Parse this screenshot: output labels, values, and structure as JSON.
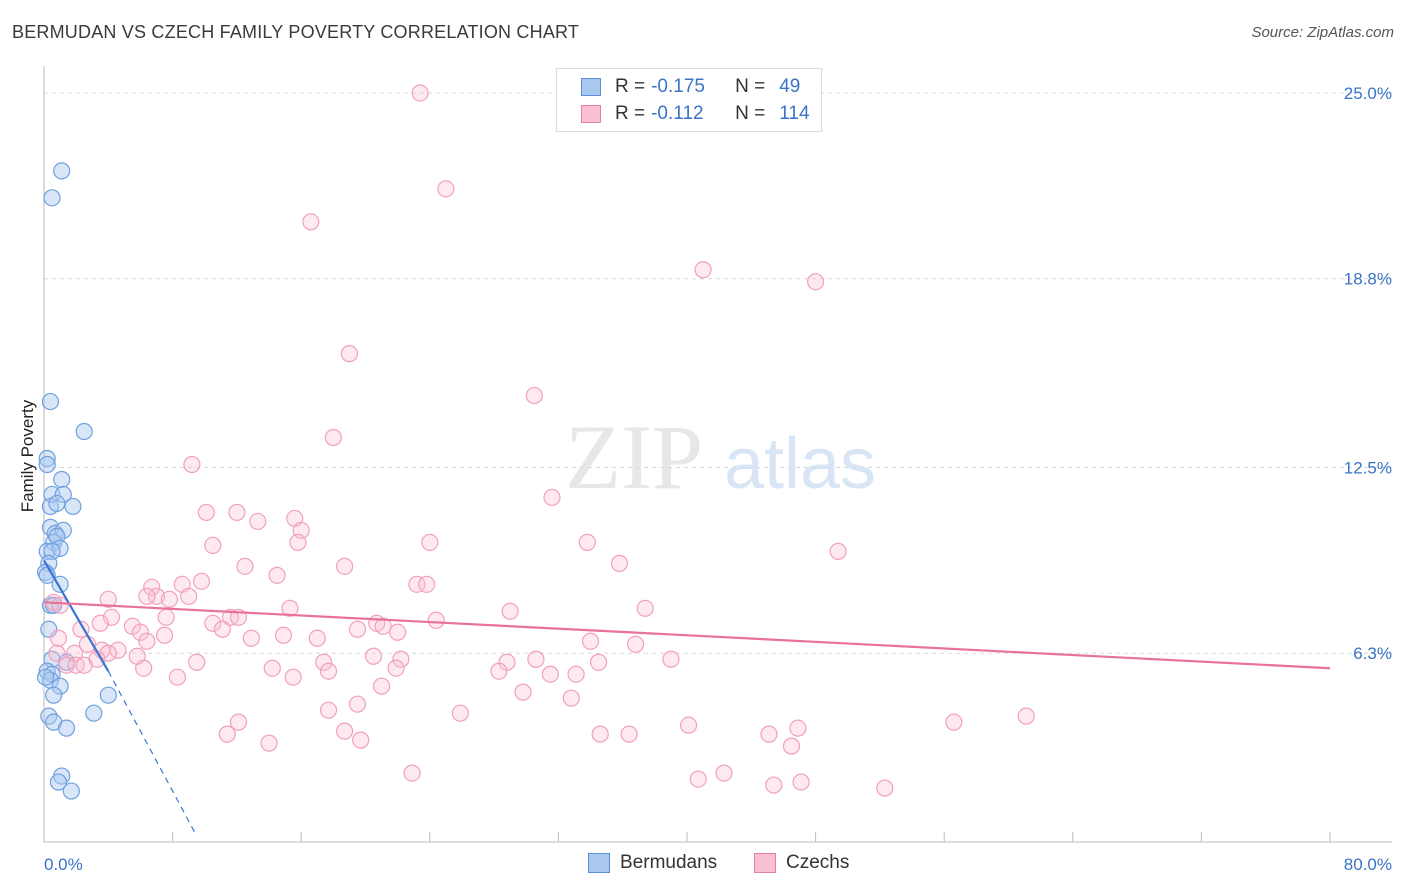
{
  "title": "BERMUDAN VS CZECH FAMILY POVERTY CORRELATION CHART",
  "source": "Source: ZipAtlas.com",
  "watermark": {
    "zip": "ZIP",
    "atlas": "atlas"
  },
  "legend_top": {
    "rows": [
      {
        "r_label": "R =",
        "r_value": "-0.175",
        "n_label": "N =",
        "n_value": "49",
        "color": "#a8c8f0",
        "border": "#5b8ed6"
      },
      {
        "r_label": "R =",
        "r_value": "-0.112",
        "n_label": "N =",
        "n_value": "114",
        "color": "#f8c0d0",
        "border": "#e87fa0"
      }
    ]
  },
  "legend_bottom": [
    {
      "label": "Bermudans",
      "color": "#a8c8f0",
      "border": "#5b8ed6"
    },
    {
      "label": "Czechs",
      "color": "#f8c0d0",
      "border": "#e87fa0"
    }
  ],
  "colors": {
    "blue": "#6fa0e0",
    "blue_line": "#3a74d6",
    "pink": "#f2a0bc",
    "pink_line": "#e8729a",
    "tick_text": "#3a74c9"
  },
  "chart_data": {
    "type": "scatter",
    "title": "BERMUDAN VS CZECH FAMILY POVERTY CORRELATION CHART",
    "xlabel": "",
    "ylabel": "Family Poverty",
    "xlim": [
      0,
      80
    ],
    "ylim": [
      0,
      25.9
    ],
    "x_tick_labels": [
      "0.0%",
      "80.0%"
    ],
    "y_ticks": [
      6.3,
      12.5,
      18.8,
      25.0
    ],
    "y_tick_labels": [
      "6.3%",
      "12.5%",
      "18.8%",
      "25.0%"
    ],
    "grid": true,
    "legend": "top-center",
    "series": [
      {
        "name": "Bermudans",
        "r": -0.175,
        "n": 49,
        "trend": {
          "x": [
            0,
            4
          ],
          "y": [
            9.4,
            5.7
          ],
          "dashed_to": [
            9.4,
            0.3
          ]
        },
        "points": [
          [
            1.1,
            22.4
          ],
          [
            0.5,
            21.5
          ],
          [
            0.4,
            14.7
          ],
          [
            2.5,
            13.7
          ],
          [
            0.2,
            12.8
          ],
          [
            0.2,
            12.6
          ],
          [
            1.1,
            12.1
          ],
          [
            0.5,
            11.6
          ],
          [
            1.2,
            11.6
          ],
          [
            0.4,
            11.2
          ],
          [
            0.8,
            11.3
          ],
          [
            1.8,
            11.2
          ],
          [
            0.4,
            10.5
          ],
          [
            0.7,
            10.3
          ],
          [
            1.2,
            10.4
          ],
          [
            0.6,
            10.0
          ],
          [
            0.8,
            10.2
          ],
          [
            0.2,
            9.7
          ],
          [
            1.0,
            9.8
          ],
          [
            0.5,
            9.7
          ],
          [
            0.3,
            9.3
          ],
          [
            0.1,
            9.0
          ],
          [
            0.2,
            8.9
          ],
          [
            1.0,
            8.6
          ],
          [
            0.4,
            7.9
          ],
          [
            0.6,
            7.9
          ],
          [
            0.3,
            7.1
          ],
          [
            0.5,
            6.1
          ],
          [
            1.4,
            6.0
          ],
          [
            0.2,
            5.7
          ],
          [
            0.5,
            5.6
          ],
          [
            0.4,
            5.4
          ],
          [
            0.1,
            5.5
          ],
          [
            1.0,
            5.2
          ],
          [
            0.6,
            4.9
          ],
          [
            4.0,
            4.9
          ],
          [
            3.1,
            4.3
          ],
          [
            0.3,
            4.2
          ],
          [
            0.6,
            4.0
          ],
          [
            1.4,
            3.8
          ],
          [
            1.1,
            2.2
          ],
          [
            0.9,
            2.0
          ],
          [
            1.7,
            1.7
          ]
        ]
      },
      {
        "name": "Czechs",
        "r": -0.112,
        "n": 114,
        "trend": {
          "x": [
            0,
            80
          ],
          "y": [
            8.0,
            5.8
          ]
        },
        "points": [
          [
            23.4,
            25.0
          ],
          [
            25.0,
            21.8
          ],
          [
            16.6,
            20.7
          ],
          [
            41.0,
            19.1
          ],
          [
            48.0,
            18.7
          ],
          [
            19.0,
            16.3
          ],
          [
            30.5,
            14.9
          ],
          [
            18.0,
            13.5
          ],
          [
            9.2,
            12.6
          ],
          [
            31.6,
            11.5
          ],
          [
            10.1,
            11.0
          ],
          [
            12.0,
            11.0
          ],
          [
            13.3,
            10.7
          ],
          [
            15.6,
            10.8
          ],
          [
            16.0,
            10.4
          ],
          [
            15.8,
            10.0
          ],
          [
            24.0,
            10.0
          ],
          [
            33.8,
            10.0
          ],
          [
            10.5,
            9.9
          ],
          [
            49.4,
            9.7
          ],
          [
            12.5,
            9.2
          ],
          [
            18.7,
            9.2
          ],
          [
            35.8,
            9.3
          ],
          [
            14.5,
            8.9
          ],
          [
            8.6,
            8.6
          ],
          [
            9.8,
            8.7
          ],
          [
            23.2,
            8.6
          ],
          [
            23.8,
            8.6
          ],
          [
            6.7,
            8.5
          ],
          [
            7.0,
            8.2
          ],
          [
            6.4,
            8.2
          ],
          [
            7.8,
            8.1
          ],
          [
            9.0,
            8.2
          ],
          [
            4.0,
            8.1
          ],
          [
            0.6,
            8.0
          ],
          [
            1.0,
            7.9
          ],
          [
            15.3,
            7.8
          ],
          [
            37.4,
            7.8
          ],
          [
            29.0,
            7.7
          ],
          [
            4.2,
            7.5
          ],
          [
            7.6,
            7.5
          ],
          [
            11.6,
            7.5
          ],
          [
            12.1,
            7.5
          ],
          [
            24.4,
            7.4
          ],
          [
            3.5,
            7.3
          ],
          [
            5.5,
            7.2
          ],
          [
            10.5,
            7.3
          ],
          [
            20.7,
            7.3
          ],
          [
            21.1,
            7.2
          ],
          [
            6.0,
            7.0
          ],
          [
            11.1,
            7.1
          ],
          [
            19.5,
            7.1
          ],
          [
            2.3,
            7.1
          ],
          [
            22.0,
            7.0
          ],
          [
            7.5,
            6.9
          ],
          [
            12.9,
            6.8
          ],
          [
            14.9,
            6.9
          ],
          [
            0.9,
            6.8
          ],
          [
            6.4,
            6.7
          ],
          [
            17.0,
            6.8
          ],
          [
            36.8,
            6.6
          ],
          [
            34.0,
            6.7
          ],
          [
            2.7,
            6.6
          ],
          [
            4.6,
            6.4
          ],
          [
            0.8,
            6.3
          ],
          [
            1.9,
            6.3
          ],
          [
            3.6,
            6.4
          ],
          [
            4.0,
            6.3
          ],
          [
            3.3,
            6.1
          ],
          [
            5.8,
            6.2
          ],
          [
            20.5,
            6.2
          ],
          [
            22.2,
            6.1
          ],
          [
            39.0,
            6.1
          ],
          [
            28.8,
            6.0
          ],
          [
            30.6,
            6.1
          ],
          [
            34.5,
            6.0
          ],
          [
            17.4,
            6.0
          ],
          [
            1.4,
            5.9
          ],
          [
            2.0,
            5.9
          ],
          [
            2.5,
            5.9
          ],
          [
            6.2,
            5.8
          ],
          [
            9.5,
            6.0
          ],
          [
            14.2,
            5.8
          ],
          [
            17.7,
            5.7
          ],
          [
            21.9,
            5.8
          ],
          [
            28.3,
            5.7
          ],
          [
            33.1,
            5.6
          ],
          [
            15.5,
            5.5
          ],
          [
            8.3,
            5.5
          ],
          [
            31.5,
            5.6
          ],
          [
            21.0,
            5.2
          ],
          [
            29.8,
            5.0
          ],
          [
            32.8,
            4.8
          ],
          [
            19.5,
            4.6
          ],
          [
            17.7,
            4.4
          ],
          [
            25.9,
            4.3
          ],
          [
            40.1,
            3.9
          ],
          [
            12.1,
            4.0
          ],
          [
            56.6,
            4.0
          ],
          [
            61.1,
            4.2
          ],
          [
            45.1,
            3.6
          ],
          [
            46.9,
            3.8
          ],
          [
            11.4,
            3.6
          ],
          [
            34.6,
            3.6
          ],
          [
            36.4,
            3.6
          ],
          [
            18.7,
            3.7
          ],
          [
            19.7,
            3.4
          ],
          [
            14.0,
            3.3
          ],
          [
            46.5,
            3.2
          ],
          [
            22.9,
            2.3
          ],
          [
            42.3,
            2.3
          ],
          [
            40.7,
            2.1
          ],
          [
            45.4,
            1.9
          ],
          [
            47.1,
            2.0
          ],
          [
            52.3,
            1.8
          ]
        ]
      }
    ]
  }
}
